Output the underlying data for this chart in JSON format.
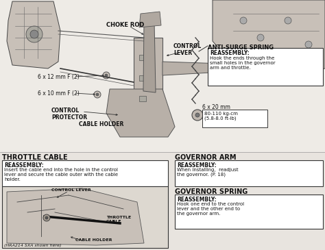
{
  "bg_color": "#e8e4df",
  "labels": {
    "choke_rod": "CHOKE ROD",
    "control_lever": "CONTROL\nLEVER",
    "anti_surge_spring": "ANTI-SURGE SPRING",
    "bolt1": "6 x 12 mm F (2)",
    "bolt2": "6 x 10 mm F (2)",
    "control_protector": "CONTROL\nPROTECTOR",
    "cable_holder_top": "CABLE HOLDER",
    "bolt3": "6 x 20 mm",
    "torque": "80-110 kg-cm\n(5.8-8.0 ft-lb)",
    "throttle_cable_title": "THROTTLE CABLE",
    "governor_arm_title": "GOVERNOR ARM",
    "governor_spring_title": "GOVERNOR SPRING",
    "reassembly1_title": "REASSEMBLY:",
    "reassembly1_body": "Insert the cable end into the hole in the control\nlever and secure the cable outer with the cable\nholder.",
    "reassembly2_title": "REASSEMBLY:",
    "reassembly2_body": "Hook the ends through the\nsmall holes in the governor\narm and throttle.",
    "reassembly3_title": "REASSEMBLY:",
    "reassembly3_body": "When installing,  readjust\nthe governor. (P. 18)",
    "reassembly4_title": "REASSEMBLY:",
    "reassembly4_body": "Hook one end to the control\nlever and the other end to\nthe governor arm.",
    "control_lever_sub": "CONTROL LEVER",
    "throttle_cable_sub": "THROTTLE\nCABLE",
    "cable_holder_sub": "CABLE HOLDER",
    "hra": "(HRA214 SXA shown here)"
  },
  "colors": {
    "text_dark": "#111111",
    "box_border": "#333333",
    "box_bg": "#ffffff",
    "diagram_line": "#555555",
    "label_line": "#444444",
    "part_fill": "#b0a898",
    "part_fill2": "#c8c0b8",
    "bg_diagram": "#d8d0c8"
  }
}
